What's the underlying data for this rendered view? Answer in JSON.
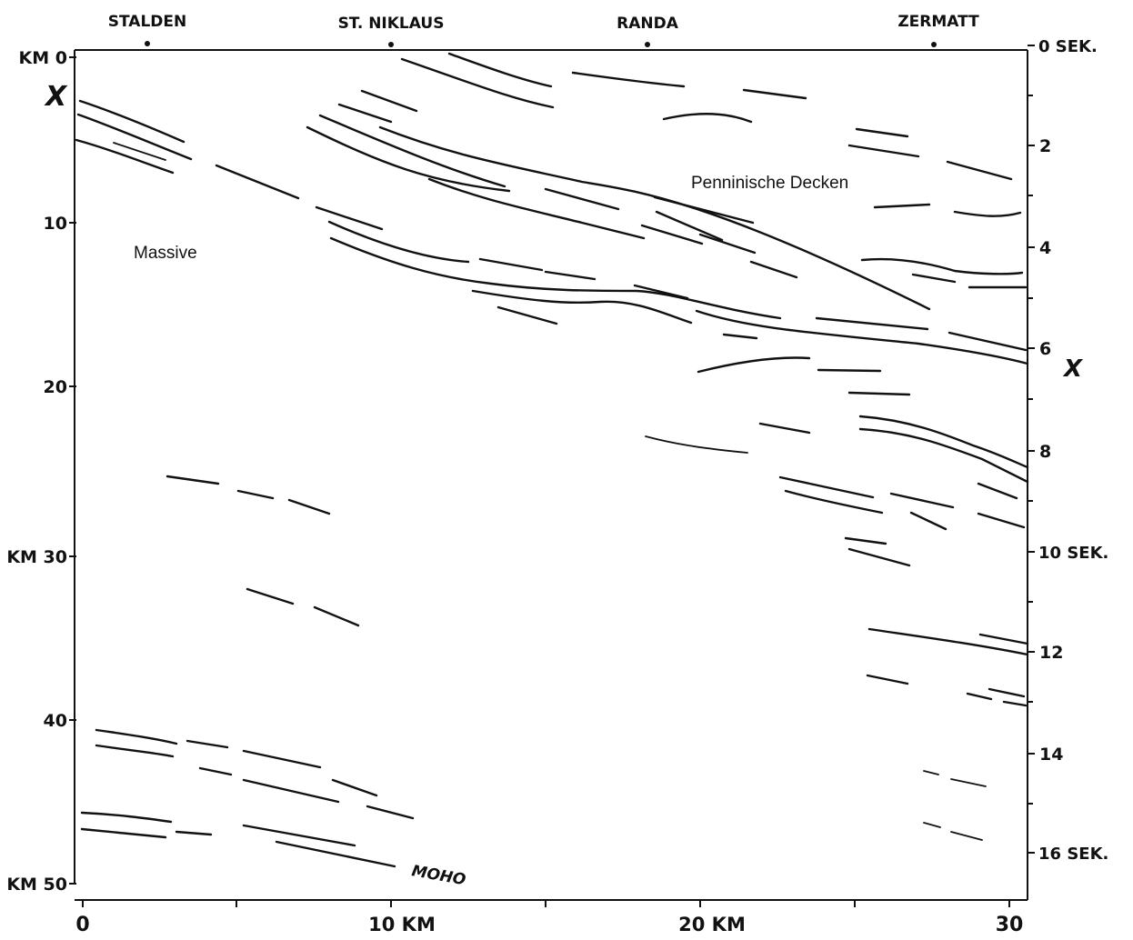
{
  "towns": [
    "STALDEN",
    "ST. NIKLAUS",
    "RANDA",
    "ZERMATT"
  ],
  "depth_axis": [
    "KM 0",
    "10",
    "20",
    "KM 30",
    "40",
    "KM 50"
  ],
  "time_axis": [
    "0 SEK.",
    "2",
    "4",
    "6",
    "8",
    "10 SEK.",
    "12",
    "14",
    "16 SEK."
  ],
  "distance_axis": [
    "0",
    "10 KM",
    "20 KM",
    "30"
  ],
  "labels": {
    "penninic": "Penninische Decken",
    "massive": "Massive",
    "moho": "MOHO",
    "x_left": "X",
    "x_right": "X"
  }
}
